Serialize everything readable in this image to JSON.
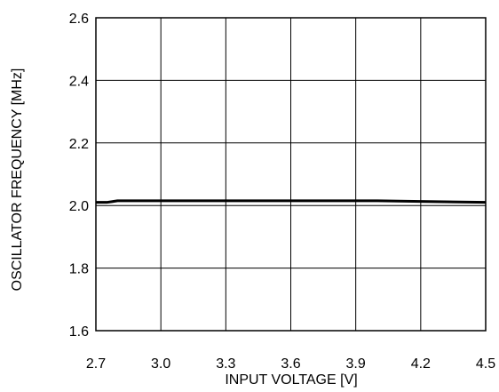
{
  "chart_data": {
    "type": "line",
    "title": "",
    "xlabel": "INPUT VOLTAGE [V]",
    "ylabel": "OSCILLATOR FREQUENCY [MHz]",
    "xlim": [
      2.7,
      4.5
    ],
    "ylim": [
      1.6,
      2.6
    ],
    "xticks": [
      "2.7",
      "3.0",
      "3.3",
      "3.6",
      "3.9",
      "4.2",
      "4.5"
    ],
    "yticks": [
      "1.6",
      "1.8",
      "2.0",
      "2.2",
      "2.4",
      "2.6"
    ],
    "grid": true,
    "legend": "none",
    "series": [
      {
        "x": [
          2.7,
          2.75,
          2.8,
          3.0,
          3.3,
          3.6,
          3.9,
          4.0,
          4.2,
          4.5
        ],
        "y": [
          2.01,
          2.01,
          2.015,
          2.015,
          2.015,
          2.015,
          2.015,
          2.015,
          2.013,
          2.01
        ],
        "color": "#000000"
      }
    ]
  }
}
